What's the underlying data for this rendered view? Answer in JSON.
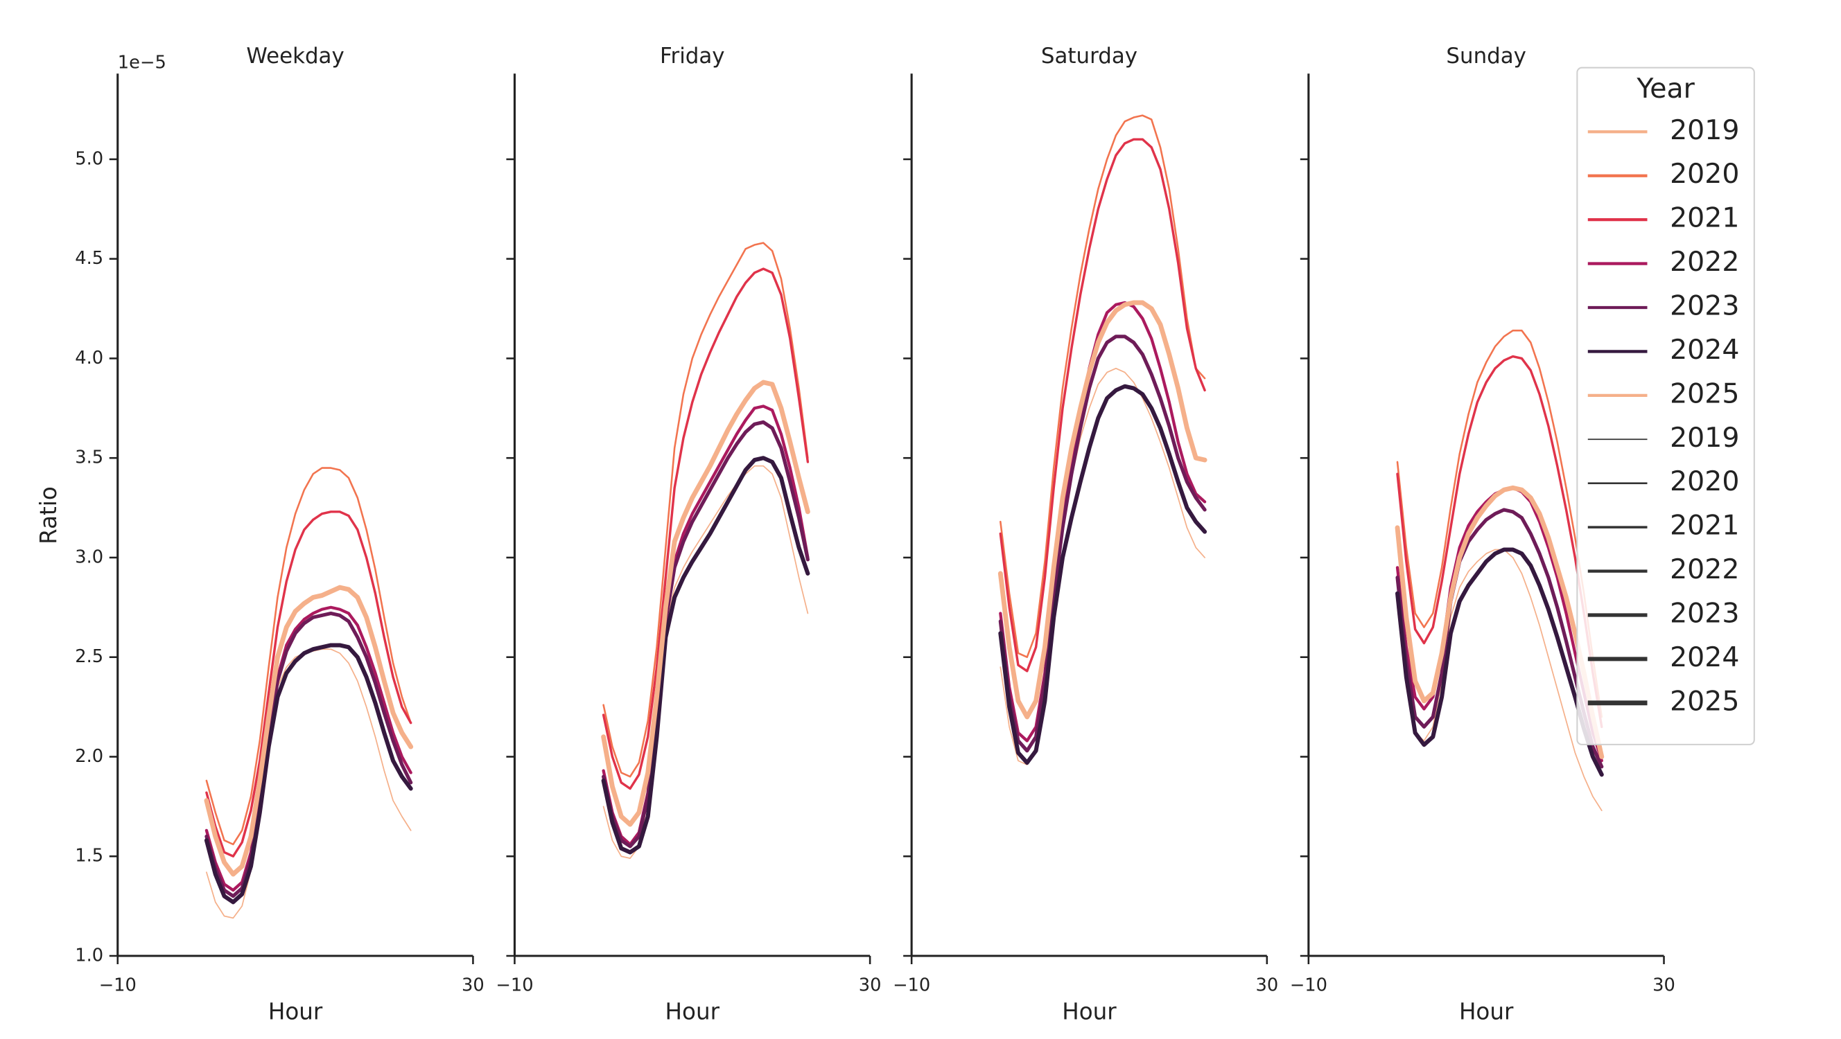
{
  "chart_data": [
    {
      "type": "line",
      "title": "Weekday",
      "xlabel": "Hour",
      "ylabel": "Ratio",
      "y_offset": "1e−5",
      "x": [
        0,
        1,
        2,
        3,
        4,
        5,
        6,
        7,
        8,
        9,
        10,
        11,
        12,
        13,
        14,
        15,
        16,
        17,
        18,
        19,
        20,
        21,
        22,
        23
      ],
      "xlim": [
        -10,
        30
      ],
      "xticks": [
        {
          "value": -10,
          "label": "−10"
        },
        30
      ],
      "ylim": [
        1.0,
        5.43
      ],
      "yticks": [
        {
          "value": 1.0,
          "label": "1.0"
        },
        1.5,
        {
          "value": 2.0,
          "label": "2.0"
        },
        2.5,
        {
          "value": 3.0,
          "label": "3.0"
        },
        3.5,
        {
          "value": 4.0,
          "label": "4.0"
        },
        4.5,
        {
          "value": 5.0,
          "label": "5.0"
        }
      ],
      "series": [
        {
          "name": "2019",
          "color": "#f5b08a",
          "width": 1,
          "values": [
            1.42,
            1.27,
            1.2,
            1.19,
            1.25,
            1.43,
            1.72,
            2.08,
            2.35,
            2.45,
            2.5,
            2.52,
            2.53,
            2.54,
            2.54,
            2.52,
            2.47,
            2.38,
            2.25,
            2.1,
            1.93,
            1.78,
            1.7,
            1.63
          ]
        },
        {
          "name": "2020",
          "color": "#f2744f",
          "width": 1.5,
          "values": [
            1.88,
            1.72,
            1.58,
            1.56,
            1.63,
            1.8,
            2.08,
            2.45,
            2.8,
            3.05,
            3.22,
            3.34,
            3.42,
            3.45,
            3.45,
            3.44,
            3.4,
            3.3,
            3.14,
            2.94,
            2.7,
            2.47,
            2.3,
            2.17
          ]
        },
        {
          "name": "2021",
          "color": "#e0334a",
          "width": 2,
          "values": [
            1.82,
            1.65,
            1.52,
            1.5,
            1.57,
            1.73,
            1.98,
            2.32,
            2.65,
            2.88,
            3.04,
            3.14,
            3.19,
            3.22,
            3.23,
            3.23,
            3.21,
            3.14,
            3.0,
            2.82,
            2.6,
            2.4,
            2.25,
            2.17
          ]
        },
        {
          "name": "2022",
          "color": "#ab1a5e",
          "width": 2.5,
          "values": [
            1.63,
            1.47,
            1.36,
            1.33,
            1.37,
            1.52,
            1.8,
            2.12,
            2.4,
            2.56,
            2.64,
            2.69,
            2.72,
            2.74,
            2.75,
            2.74,
            2.72,
            2.66,
            2.55,
            2.42,
            2.27,
            2.12,
            2.0,
            1.92
          ]
        },
        {
          "name": "2023",
          "color": "#6e1c58",
          "width": 3,
          "values": [
            1.6,
            1.44,
            1.33,
            1.3,
            1.34,
            1.49,
            1.77,
            2.1,
            2.38,
            2.53,
            2.62,
            2.67,
            2.7,
            2.71,
            2.72,
            2.71,
            2.68,
            2.6,
            2.5,
            2.37,
            2.22,
            2.08,
            1.96,
            1.87
          ]
        },
        {
          "name": "2024",
          "color": "#35193f",
          "width": 3.5,
          "values": [
            1.58,
            1.41,
            1.3,
            1.27,
            1.31,
            1.45,
            1.72,
            2.05,
            2.3,
            2.42,
            2.48,
            2.52,
            2.54,
            2.55,
            2.56,
            2.56,
            2.55,
            2.5,
            2.4,
            2.27,
            2.12,
            1.98,
            1.9,
            1.84
          ]
        },
        {
          "name": "2025",
          "color": "#f5b08a",
          "width": 4,
          "values": [
            1.78,
            1.6,
            1.47,
            1.41,
            1.45,
            1.6,
            1.88,
            2.2,
            2.5,
            2.65,
            2.73,
            2.77,
            2.8,
            2.81,
            2.83,
            2.85,
            2.84,
            2.8,
            2.7,
            2.55,
            2.38,
            2.22,
            2.12,
            2.05
          ]
        }
      ]
    },
    {
      "type": "line",
      "title": "Friday",
      "xlabel": "Hour",
      "sharey": true,
      "x": [
        0,
        1,
        2,
        3,
        4,
        5,
        6,
        7,
        8,
        9,
        10,
        11,
        12,
        13,
        14,
        15,
        16,
        17,
        18,
        19,
        20,
        21,
        22,
        23
      ],
      "xlim": [
        -10,
        30
      ],
      "xticks": [
        {
          "value": -10,
          "label": "−10"
        },
        30
      ],
      "series": [
        {
          "name": "2019",
          "color": "#f5b08a",
          "width": 1,
          "values": [
            1.75,
            1.58,
            1.5,
            1.49,
            1.55,
            1.78,
            2.2,
            2.65,
            2.85,
            2.95,
            3.03,
            3.1,
            3.17,
            3.24,
            3.31,
            3.37,
            3.42,
            3.46,
            3.46,
            3.42,
            3.3,
            3.1,
            2.9,
            2.72
          ]
        },
        {
          "name": "2020",
          "color": "#f2744f",
          "width": 1.5,
          "values": [
            2.26,
            2.05,
            1.92,
            1.9,
            1.97,
            2.18,
            2.55,
            3.05,
            3.55,
            3.82,
            4.0,
            4.12,
            4.22,
            4.31,
            4.39,
            4.47,
            4.55,
            4.57,
            4.58,
            4.54,
            4.4,
            4.15,
            3.85,
            3.5
          ]
        },
        {
          "name": "2021",
          "color": "#e0334a",
          "width": 2,
          "values": [
            2.21,
            2.0,
            1.87,
            1.84,
            1.91,
            2.1,
            2.45,
            2.9,
            3.35,
            3.6,
            3.78,
            3.92,
            4.03,
            4.13,
            4.22,
            4.31,
            4.38,
            4.43,
            4.45,
            4.43,
            4.32,
            4.1,
            3.8,
            3.48
          ]
        },
        {
          "name": "2022",
          "color": "#ab1a5e",
          "width": 2.5,
          "values": [
            1.93,
            1.72,
            1.6,
            1.56,
            1.62,
            1.82,
            2.25,
            2.7,
            2.98,
            3.12,
            3.22,
            3.3,
            3.38,
            3.46,
            3.54,
            3.62,
            3.69,
            3.75,
            3.76,
            3.74,
            3.62,
            3.45,
            3.25,
            3.0
          ]
        },
        {
          "name": "2023",
          "color": "#6e1c58",
          "width": 3,
          "values": [
            1.9,
            1.7,
            1.58,
            1.55,
            1.6,
            1.8,
            2.22,
            2.68,
            2.95,
            3.08,
            3.18,
            3.26,
            3.34,
            3.42,
            3.5,
            3.57,
            3.63,
            3.67,
            3.68,
            3.65,
            3.55,
            3.38,
            3.2,
            2.99
          ]
        },
        {
          "name": "2024",
          "color": "#35193f",
          "width": 3.5,
          "values": [
            1.88,
            1.67,
            1.54,
            1.52,
            1.55,
            1.7,
            2.1,
            2.6,
            2.8,
            2.9,
            2.98,
            3.05,
            3.12,
            3.2,
            3.28,
            3.36,
            3.44,
            3.49,
            3.5,
            3.48,
            3.4,
            3.22,
            3.05,
            2.92
          ]
        },
        {
          "name": "2025",
          "color": "#f5b08a",
          "width": 4,
          "values": [
            2.1,
            1.85,
            1.7,
            1.66,
            1.72,
            1.92,
            2.3,
            2.75,
            3.08,
            3.2,
            3.3,
            3.38,
            3.46,
            3.55,
            3.64,
            3.72,
            3.79,
            3.85,
            3.88,
            3.87,
            3.75,
            3.58,
            3.4,
            3.23
          ]
        }
      ]
    },
    {
      "type": "line",
      "title": "Saturday",
      "xlabel": "Hour",
      "sharey": true,
      "x": [
        0,
        1,
        2,
        3,
        4,
        5,
        6,
        7,
        8,
        9,
        10,
        11,
        12,
        13,
        14,
        15,
        16,
        17,
        18,
        19,
        20,
        21,
        22,
        23
      ],
      "xlim": [
        -10,
        30
      ],
      "xticks": [
        {
          "value": -10,
          "label": "−10"
        },
        30
      ],
      "series": [
        {
          "name": "2019",
          "color": "#f5b08a",
          "width": 1,
          "values": [
            2.45,
            2.15,
            1.98,
            1.96,
            2.05,
            2.35,
            2.8,
            3.15,
            3.4,
            3.6,
            3.75,
            3.87,
            3.93,
            3.95,
            3.93,
            3.88,
            3.8,
            3.7,
            3.58,
            3.45,
            3.3,
            3.15,
            3.05,
            3.0
          ]
        },
        {
          "name": "2020",
          "color": "#f2744f",
          "width": 1.5,
          "values": [
            3.18,
            2.82,
            2.52,
            2.5,
            2.62,
            2.98,
            3.45,
            3.85,
            4.15,
            4.42,
            4.65,
            4.85,
            5.0,
            5.12,
            5.19,
            5.21,
            5.22,
            5.2,
            5.06,
            4.85,
            4.55,
            4.2,
            3.95,
            3.9
          ]
        },
        {
          "name": "2021",
          "color": "#e0334a",
          "width": 2,
          "values": [
            3.12,
            2.75,
            2.46,
            2.43,
            2.55,
            2.9,
            3.35,
            3.75,
            4.05,
            4.32,
            4.55,
            4.75,
            4.9,
            5.02,
            5.08,
            5.1,
            5.1,
            5.06,
            4.95,
            4.75,
            4.48,
            4.15,
            3.95,
            3.84
          ]
        },
        {
          "name": "2022",
          "color": "#ab1a5e",
          "width": 2.5,
          "values": [
            2.72,
            2.35,
            2.12,
            2.08,
            2.15,
            2.42,
            2.85,
            3.2,
            3.48,
            3.72,
            3.95,
            4.12,
            4.23,
            4.27,
            4.28,
            4.26,
            4.2,
            4.1,
            3.95,
            3.78,
            3.58,
            3.42,
            3.32,
            3.28
          ]
        },
        {
          "name": "2023",
          "color": "#6e1c58",
          "width": 3,
          "values": [
            2.68,
            2.3,
            2.08,
            2.03,
            2.1,
            2.38,
            2.8,
            3.15,
            3.42,
            3.65,
            3.85,
            4.0,
            4.08,
            4.11,
            4.11,
            4.08,
            4.02,
            3.92,
            3.8,
            3.66,
            3.5,
            3.38,
            3.3,
            3.24
          ]
        },
        {
          "name": "2024",
          "color": "#35193f",
          "width": 3.5,
          "values": [
            2.62,
            2.25,
            2.02,
            1.97,
            2.03,
            2.28,
            2.7,
            3.0,
            3.2,
            3.38,
            3.55,
            3.7,
            3.8,
            3.84,
            3.86,
            3.85,
            3.82,
            3.75,
            3.65,
            3.52,
            3.38,
            3.25,
            3.18,
            3.13
          ]
        },
        {
          "name": "2025",
          "color": "#f5b08a",
          "width": 4,
          "values": [
            2.92,
            2.55,
            2.28,
            2.2,
            2.28,
            2.55,
            2.95,
            3.3,
            3.55,
            3.75,
            3.93,
            4.08,
            4.18,
            4.24,
            4.27,
            4.28,
            4.28,
            4.25,
            4.17,
            4.02,
            3.85,
            3.65,
            3.5,
            3.49
          ]
        }
      ]
    },
    {
      "type": "line",
      "title": "Sunday",
      "xlabel": "Hour",
      "sharey": true,
      "x": [
        0,
        1,
        2,
        3,
        4,
        5,
        6,
        7,
        8,
        9,
        10,
        11,
        12,
        13,
        14,
        15,
        16,
        17,
        18,
        19,
        20,
        21,
        22,
        23
      ],
      "xlim": [
        -10,
        30
      ],
      "xticks": [
        {
          "value": -10,
          "label": "−10"
        },
        30
      ],
      "series": [
        {
          "name": "2019",
          "color": "#f5b08a",
          "width": 1,
          "values": [
            2.75,
            2.35,
            2.12,
            2.08,
            2.15,
            2.38,
            2.7,
            2.85,
            2.93,
            2.98,
            3.02,
            3.04,
            3.04,
            3.0,
            2.92,
            2.8,
            2.66,
            2.5,
            2.34,
            2.18,
            2.02,
            1.9,
            1.8,
            1.73
          ]
        },
        {
          "name": "2020",
          "color": "#f2744f",
          "width": 1.5,
          "values": [
            3.48,
            3.05,
            2.72,
            2.65,
            2.72,
            2.95,
            3.25,
            3.52,
            3.72,
            3.88,
            3.98,
            4.06,
            4.11,
            4.14,
            4.14,
            4.08,
            3.95,
            3.78,
            3.58,
            3.35,
            3.1,
            2.82,
            2.5,
            2.2
          ]
        },
        {
          "name": "2021",
          "color": "#e0334a",
          "width": 2,
          "values": [
            3.42,
            2.98,
            2.64,
            2.57,
            2.65,
            2.88,
            3.15,
            3.42,
            3.62,
            3.78,
            3.88,
            3.95,
            3.99,
            4.01,
            4.0,
            3.94,
            3.82,
            3.66,
            3.46,
            3.24,
            3.0,
            2.72,
            2.42,
            2.15
          ]
        },
        {
          "name": "2022",
          "color": "#ab1a5e",
          "width": 2.5,
          "values": [
            2.95,
            2.55,
            2.3,
            2.24,
            2.3,
            2.52,
            2.85,
            3.05,
            3.16,
            3.23,
            3.28,
            3.32,
            3.34,
            3.35,
            3.33,
            3.28,
            3.18,
            3.05,
            2.9,
            2.72,
            2.52,
            2.32,
            2.12,
            1.98
          ]
        },
        {
          "name": "2023",
          "color": "#6e1c58",
          "width": 3,
          "values": [
            2.9,
            2.48,
            2.2,
            2.15,
            2.2,
            2.42,
            2.78,
            2.98,
            3.08,
            3.14,
            3.19,
            3.22,
            3.24,
            3.23,
            3.2,
            3.12,
            3.02,
            2.9,
            2.75,
            2.58,
            2.4,
            2.22,
            2.05,
            1.95
          ]
        },
        {
          "name": "2024",
          "color": "#35193f",
          "width": 3.5,
          "values": [
            2.82,
            2.4,
            2.12,
            2.06,
            2.1,
            2.3,
            2.62,
            2.78,
            2.86,
            2.92,
            2.98,
            3.02,
            3.04,
            3.04,
            3.02,
            2.96,
            2.86,
            2.74,
            2.6,
            2.45,
            2.3,
            2.14,
            2.0,
            1.91
          ]
        },
        {
          "name": "2025",
          "color": "#f5b08a",
          "width": 4,
          "values": [
            3.15,
            2.7,
            2.38,
            2.28,
            2.32,
            2.52,
            2.8,
            3.0,
            3.12,
            3.2,
            3.26,
            3.31,
            3.34,
            3.35,
            3.34,
            3.3,
            3.22,
            3.1,
            2.95,
            2.8,
            2.62,
            2.42,
            2.2,
            2.0
          ]
        }
      ]
    }
  ],
  "legend": {
    "title": "Year",
    "corner": "upper right",
    "size_color": "#333333",
    "sizes": [
      {
        "name": "2019",
        "width": 1
      },
      {
        "name": "2020",
        "width": 1.5
      },
      {
        "name": "2021",
        "width": 2
      },
      {
        "name": "2022",
        "width": 2.5
      },
      {
        "name": "2023",
        "width": 3
      },
      {
        "name": "2024",
        "width": 3.5
      },
      {
        "name": "2025",
        "width": 4
      }
    ]
  }
}
